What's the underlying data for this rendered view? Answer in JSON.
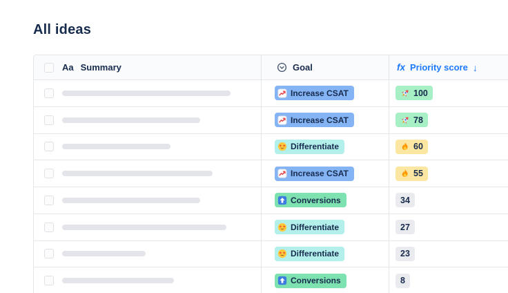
{
  "page": {
    "title": "All ideas"
  },
  "colors": {
    "text-navy": "#172B4D",
    "accent-blue": "#1D7AFC",
    "border": "#E4E6EA",
    "header-bg": "#FAFBFC",
    "placeholder-bar": "#E4E5EA",
    "chip-increase-csat": "#85B4F5",
    "chip-differentiate": "#B3F0EC",
    "chip-conversions": "#7DE2B0",
    "score-green": "#A7F0C6",
    "score-yellow": "#FBE6A2",
    "score-gray": "#EAEBEF"
  },
  "table": {
    "header": {
      "summary_type_icon": "Aa",
      "summary_label": "Summary",
      "goal_label": "Goal",
      "priority_fx": "fx",
      "priority_label": "Priority score",
      "sort_arrow": "↓"
    },
    "rows": [
      {
        "summary_bar_width": 244,
        "goal": {
          "label": "Increase CSAT",
          "variant": "increase-csat",
          "icon": "chart-increasing"
        },
        "score": {
          "value": "100",
          "variant": "green",
          "icon": "rocket"
        }
      },
      {
        "summary_bar_width": 200,
        "goal": {
          "label": "Increase CSAT",
          "variant": "increase-csat",
          "icon": "chart-increasing"
        },
        "score": {
          "value": "78",
          "variant": "green",
          "icon": "rocket"
        }
      },
      {
        "summary_bar_width": 157,
        "goal": {
          "label": "Differentiate",
          "variant": "differentiate",
          "icon": "star-struck"
        },
        "score": {
          "value": "60",
          "variant": "yellow",
          "icon": "fire"
        }
      },
      {
        "summary_bar_width": 218,
        "goal": {
          "label": "Increase CSAT",
          "variant": "increase-csat",
          "icon": "chart-increasing"
        },
        "score": {
          "value": "55",
          "variant": "yellow",
          "icon": "fire"
        }
      },
      {
        "summary_bar_width": 200,
        "goal": {
          "label": "Conversions",
          "variant": "conversions",
          "icon": "up-arrow"
        },
        "score": {
          "value": "34",
          "variant": "gray",
          "icon": null
        }
      },
      {
        "summary_bar_width": 238,
        "goal": {
          "label": "Differentiate",
          "variant": "differentiate",
          "icon": "star-struck"
        },
        "score": {
          "value": "27",
          "variant": "gray",
          "icon": null
        }
      },
      {
        "summary_bar_width": 121,
        "goal": {
          "label": "Differentiate",
          "variant": "differentiate",
          "icon": "star-struck"
        },
        "score": {
          "value": "23",
          "variant": "gray",
          "icon": null
        }
      },
      {
        "summary_bar_width": 162,
        "goal": {
          "label": "Conversions",
          "variant": "conversions",
          "icon": "up-arrow"
        },
        "score": {
          "value": "8",
          "variant": "gray",
          "icon": null
        }
      }
    ]
  }
}
